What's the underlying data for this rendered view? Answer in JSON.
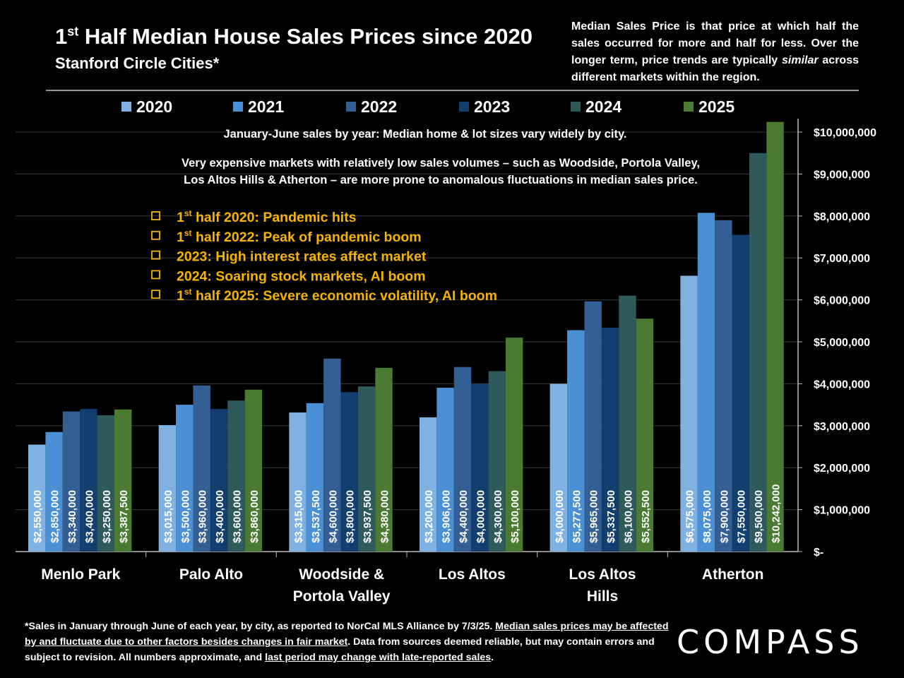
{
  "header": {
    "title_pre": "1",
    "title_sup": "st",
    "title_post": " Half Median House Sales Prices since 2020",
    "subtitle": "Stanford Circle Cities*",
    "note_part1": "Median Sales Price is that price at which half the sales occurred for more and half for less. Over the longer term, price trends are typically ",
    "note_em": "similar",
    "note_part2": " across different markets within the region."
  },
  "annotations": {
    "line1": "January-June sales by year: Median home & lot sizes vary widely by city.",
    "line2a": "Very expensive markets with relatively low sales volumes – such as Woodside, Portola Valley,",
    "line2b": "Los Altos Hills & Atherton – are more prone to anomalous fluctuations in median sales price.",
    "bullets": [
      {
        "pre": "1",
        "sup": "st",
        "post": " half 2020: Pandemic hits"
      },
      {
        "pre": "1",
        "sup": "st",
        "post": " half 2022:  Peak of pandemic boom"
      },
      {
        "pre": "",
        "sup": "",
        "post": "2023:  High interest rates affect market"
      },
      {
        "pre": "",
        "sup": "",
        "post": "2024:  Soaring stock markets, AI boom"
      },
      {
        "pre": "1",
        "sup": "st",
        "post": " half 2025:  Severe economic volatility, AI boom"
      }
    ],
    "bullet_color": "#f5b400"
  },
  "chart_data": {
    "type": "bar",
    "categories": [
      [
        "Menlo Park"
      ],
      [
        "Palo Alto"
      ],
      [
        "Woodside &",
        "Portola Valley"
      ],
      [
        "Los Altos"
      ],
      [
        "Los Altos",
        "Hills"
      ],
      [
        "Atherton"
      ]
    ],
    "series": [
      {
        "name": "2020",
        "color": "#7fb1e3",
        "values": [
          2550000,
          3015000,
          3315000,
          3200000,
          4000000,
          6575000
        ],
        "labels": [
          "$2,550,000",
          "$3,015,000",
          "$3,315,000",
          "$3,200,000",
          "$4,000,000",
          "$6,575,000"
        ]
      },
      {
        "name": "2021",
        "color": "#4b8fd4",
        "values": [
          2850000,
          3500000,
          3537500,
          3906000,
          5277500,
          8075000
        ],
        "labels": [
          "$2,850,000",
          "$3,500,000",
          "$3,537,500",
          "$3,906,000",
          "$5,277,500",
          "$8,075,000"
        ]
      },
      {
        "name": "2022",
        "color": "#345f95",
        "values": [
          3340000,
          3960000,
          4600000,
          4400000,
          5965000,
          7900000
        ],
        "labels": [
          "$3,340,000",
          "$3,960,000",
          "$4,600,000",
          "$4,400,000",
          "$5,965,000",
          "$7,900,000"
        ]
      },
      {
        "name": "2023",
        "color": "#123f6e",
        "values": [
          3400000,
          3400000,
          3800000,
          4000000,
          5337500,
          7550000
        ],
        "labels": [
          "$3,400,000",
          "$3,400,000",
          "$3,800,000",
          "$4,000,000",
          "$5,337,500",
          "$7,550,000"
        ]
      },
      {
        "name": "2024",
        "color": "#2f5a5b",
        "values": [
          3250000,
          3600000,
          3937500,
          4300000,
          6100000,
          9500000
        ],
        "labels": [
          "$3,250,000",
          "$3,600,000",
          "$3,937,500",
          "$4,300,000",
          "$6,100,000",
          "$9,500,000"
        ]
      },
      {
        "name": "2025",
        "color": "#4b7a32",
        "values": [
          3387500,
          3860000,
          4380000,
          5100000,
          5552500,
          10242000
        ],
        "labels": [
          "$3,387,500",
          "$3,860,000",
          "$4,380,000",
          "$5,100,000",
          "$5,552,500",
          "$10,242,000"
        ]
      }
    ],
    "yticks": [
      0,
      1000000,
      2000000,
      3000000,
      4000000,
      5000000,
      6000000,
      7000000,
      8000000,
      9000000,
      10000000
    ],
    "ytick_labels": [
      "$-",
      "$1,000,000",
      "$2,000,000",
      "$3,000,000",
      "$4,000,000",
      "$5,000,000",
      "$6,000,000",
      "$7,000,000",
      "$8,000,000",
      "$9,000,000",
      "$10,000,000"
    ],
    "ylim": [
      0,
      10400000
    ],
    "grid": true,
    "legend": "top"
  },
  "footer": {
    "part1": "*Sales in January through June of each year, by city, as reported to NorCal MLS Alliance by 7/3/25. ",
    "u1": "Median sales prices may be affected by and fluctuate due to other factors besides changes in fair market",
    "part2": ". Data from sources deemed reliable, but may contain errors and subject to revision. All numbers approximate, and ",
    "u2": "last period may change with late-reported sales",
    "part3": "."
  },
  "logo": "COMPASS"
}
